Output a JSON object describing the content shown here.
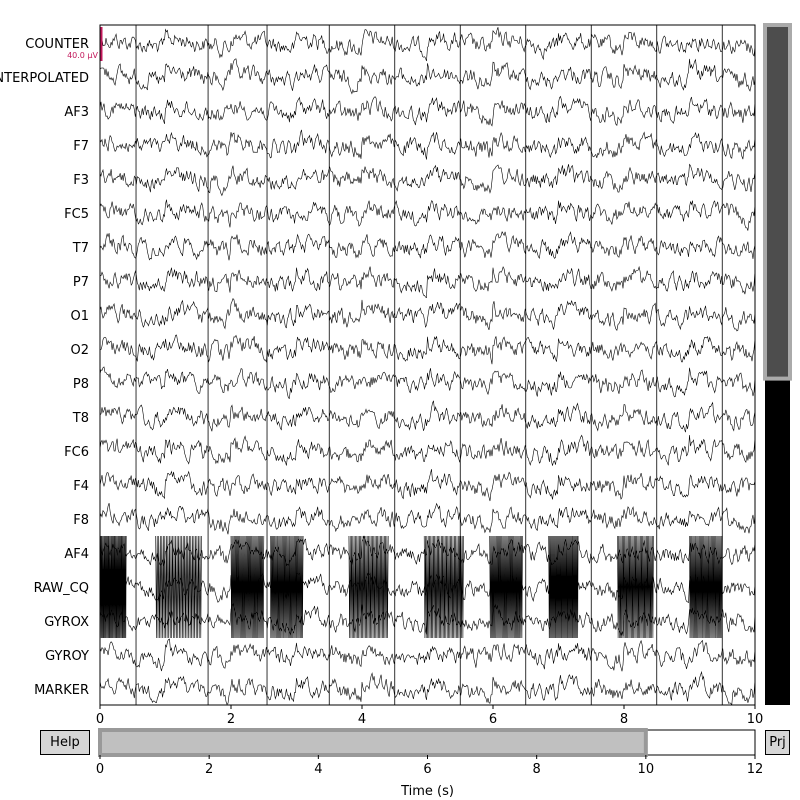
{
  "chart_data": {
    "type": "line",
    "title": "",
    "xlabel": "",
    "ylabel": "",
    "xlim": [
      0,
      10
    ],
    "x_ticks": [
      "0",
      "2",
      "4",
      "6",
      "8",
      "10"
    ],
    "channels": [
      "COUNTER",
      "INTERPOLATED",
      "AF3",
      "F7",
      "F3",
      "FC5",
      "T7",
      "P7",
      "O1",
      "O2",
      "P8",
      "T8",
      "FC6",
      "F4",
      "F8",
      "AF4",
      "RAW_CQ",
      "GYROX",
      "GYROY",
      "MARKER"
    ],
    "scale_bar": "40.0 µV",
    "scale_color": "#c2185b",
    "vertical_markers": [
      0.55,
      1.65,
      2.55,
      3.5,
      4.5,
      5.5,
      6.5,
      7.5,
      8.5,
      9.5
    ],
    "trace_color": "#000000"
  },
  "scrollbar": {
    "visible_fraction": 0.52,
    "thumb_color": "#4d4d4d",
    "track_color": "#000000"
  },
  "navigator": {
    "xlim": [
      0,
      12
    ],
    "x_ticks": [
      "0",
      "2",
      "4",
      "6",
      "8",
      "10",
      "12"
    ],
    "window_start": 0,
    "window_end": 10,
    "xlabel": "Time (s)"
  },
  "buttons": {
    "help": "Help",
    "proj": "Prj"
  }
}
